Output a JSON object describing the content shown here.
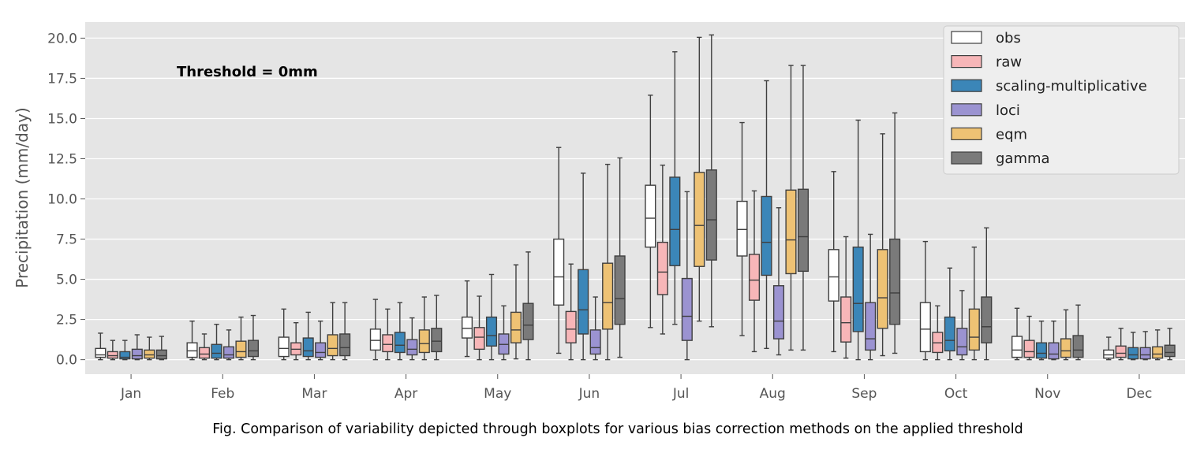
{
  "chart_data": {
    "type": "boxplot",
    "caption": "Fig. Comparison of variability depicted through boxplots for various bias correction methods on the applied threshold",
    "annotation": "Threshold = 0mm",
    "ylabel": "Precipitation (mm/day)",
    "xlabel": "",
    "ylim": [
      -0.9,
      21.0
    ],
    "yticks": [
      0.0,
      2.5,
      5.0,
      7.5,
      10.0,
      12.5,
      15.0,
      17.5,
      20.0
    ],
    "ytick_labels": [
      "0.0",
      "2.5",
      "5.0",
      "7.5",
      "10.0",
      "12.5",
      "15.0",
      "17.5",
      "20.0"
    ],
    "grid": true,
    "legend_position": "top-right",
    "categories": [
      "Jan",
      "Feb",
      "Mar",
      "Apr",
      "May",
      "Jun",
      "Jul",
      "Aug",
      "Sep",
      "Oct",
      "Nov",
      "Dec"
    ],
    "series": [
      {
        "name": "obs",
        "color": "#ffffff",
        "boxes": [
          [
            0,
            0.15,
            0.3,
            0.7,
            1.65
          ],
          [
            0,
            0.15,
            0.55,
            1.05,
            2.4
          ],
          [
            0,
            0.2,
            0.7,
            1.4,
            3.15
          ],
          [
            0,
            0.6,
            1.2,
            1.9,
            3.75
          ],
          [
            0.2,
            1.35,
            1.95,
            2.65,
            4.9
          ],
          [
            0.4,
            3.4,
            5.15,
            7.5,
            13.2
          ],
          [
            2.0,
            7.0,
            8.8,
            10.85,
            16.45
          ],
          [
            1.5,
            6.45,
            8.1,
            9.85,
            14.75
          ],
          [
            0.5,
            3.65,
            5.15,
            6.85,
            11.7
          ],
          [
            0,
            0.5,
            1.9,
            3.55,
            7.35
          ],
          [
            0,
            0.15,
            0.6,
            1.45,
            3.2
          ],
          [
            0,
            0.1,
            0.3,
            0.6,
            1.4
          ]
        ]
      },
      {
        "name": "raw",
        "color": "#f7b6b8",
        "boxes": [
          [
            0,
            0.1,
            0.25,
            0.5,
            1.2
          ],
          [
            0,
            0.1,
            0.35,
            0.75,
            1.6
          ],
          [
            0,
            0.3,
            0.65,
            1.05,
            2.3
          ],
          [
            0,
            0.5,
            0.95,
            1.55,
            3.15
          ],
          [
            0,
            0.65,
            1.4,
            2.0,
            3.95
          ],
          [
            0,
            1.05,
            1.9,
            3.0,
            5.95
          ],
          [
            1.6,
            4.05,
            5.45,
            7.3,
            12.1
          ],
          [
            0.5,
            3.7,
            4.95,
            6.55,
            10.5
          ],
          [
            0.1,
            1.1,
            2.3,
            3.9,
            7.65
          ],
          [
            0,
            0.45,
            1.05,
            1.7,
            3.35
          ],
          [
            0,
            0.15,
            0.5,
            1.2,
            2.7
          ],
          [
            0,
            0.15,
            0.4,
            0.85,
            1.95
          ]
        ]
      },
      {
        "name": "scaling-multiplicative",
        "color": "#3b86b8",
        "boxes": [
          [
            0,
            0.05,
            0.15,
            0.5,
            1.2
          ],
          [
            0,
            0.1,
            0.4,
            0.95,
            2.2
          ],
          [
            0,
            0.2,
            0.55,
            1.35,
            2.95
          ],
          [
            0,
            0.45,
            0.9,
            1.7,
            3.55
          ],
          [
            0,
            0.85,
            1.5,
            2.65,
            5.3
          ],
          [
            0,
            1.6,
            3.1,
            5.6,
            11.6
          ],
          [
            2.2,
            5.85,
            8.1,
            11.35,
            19.15
          ],
          [
            0.7,
            5.25,
            7.3,
            10.15,
            17.35
          ],
          [
            0,
            1.75,
            3.5,
            7.0,
            14.9
          ],
          [
            0,
            0.55,
            1.2,
            2.65,
            5.7
          ],
          [
            0,
            0.1,
            0.4,
            1.05,
            2.4
          ],
          [
            0,
            0.05,
            0.3,
            0.75,
            1.7
          ]
        ]
      },
      {
        "name": "loci",
        "color": "#9b93d1",
        "boxes": [
          [
            0,
            0.05,
            0.25,
            0.65,
            1.55
          ],
          [
            0,
            0.1,
            0.3,
            0.8,
            1.85
          ],
          [
            0,
            0.15,
            0.45,
            1.05,
            2.4
          ],
          [
            0,
            0.3,
            0.65,
            1.25,
            2.6
          ],
          [
            0,
            0.35,
            0.95,
            1.6,
            3.35
          ],
          [
            0,
            0.35,
            0.75,
            1.85,
            3.9
          ],
          [
            0,
            1.2,
            2.7,
            5.05,
            10.45
          ],
          [
            0.3,
            1.3,
            2.4,
            4.6,
            9.45
          ],
          [
            0,
            0.6,
            1.3,
            3.55,
            7.8
          ],
          [
            0,
            0.3,
            0.8,
            1.95,
            4.3
          ],
          [
            0,
            0.05,
            0.35,
            1.05,
            2.4
          ],
          [
            0,
            0.05,
            0.3,
            0.75,
            1.75
          ]
        ]
      },
      {
        "name": "eqm",
        "color": "#eec274",
        "boxes": [
          [
            0,
            0.1,
            0.3,
            0.6,
            1.4
          ],
          [
            0,
            0.15,
            0.5,
            1.15,
            2.65
          ],
          [
            0,
            0.25,
            0.7,
            1.55,
            3.55
          ],
          [
            0,
            0.45,
            1.0,
            1.85,
            3.9
          ],
          [
            0.05,
            1.05,
            1.85,
            2.95,
            5.9
          ],
          [
            0,
            1.9,
            3.55,
            6.0,
            12.15
          ],
          [
            2.4,
            5.8,
            8.35,
            11.65,
            20.05
          ],
          [
            0.6,
            5.35,
            7.45,
            10.55,
            18.3
          ],
          [
            0.25,
            1.95,
            3.85,
            6.85,
            14.05
          ],
          [
            0,
            0.6,
            1.4,
            3.15,
            7.0
          ],
          [
            0,
            0.15,
            0.55,
            1.3,
            3.1
          ],
          [
            0,
            0.1,
            0.35,
            0.8,
            1.85
          ]
        ]
      },
      {
        "name": "gamma",
        "color": "#7a7a7a",
        "boxes": [
          [
            0,
            0.05,
            0.25,
            0.6,
            1.45
          ],
          [
            0,
            0.2,
            0.55,
            1.2,
            2.75
          ],
          [
            0,
            0.25,
            0.75,
            1.6,
            3.55
          ],
          [
            0,
            0.5,
            1.15,
            1.95,
            4.0
          ],
          [
            0,
            1.25,
            2.15,
            3.5,
            6.7
          ],
          [
            0.15,
            2.2,
            3.8,
            6.45,
            12.55
          ],
          [
            2.05,
            6.2,
            8.7,
            11.8,
            20.2
          ],
          [
            0.6,
            5.5,
            7.65,
            10.6,
            18.3
          ],
          [
            0.4,
            2.2,
            4.15,
            7.5,
            15.35
          ],
          [
            0,
            1.05,
            2.05,
            3.9,
            8.2
          ],
          [
            0,
            0.15,
            0.6,
            1.5,
            3.4
          ],
          [
            0,
            0.2,
            0.45,
            0.9,
            1.95
          ]
        ]
      }
    ]
  }
}
